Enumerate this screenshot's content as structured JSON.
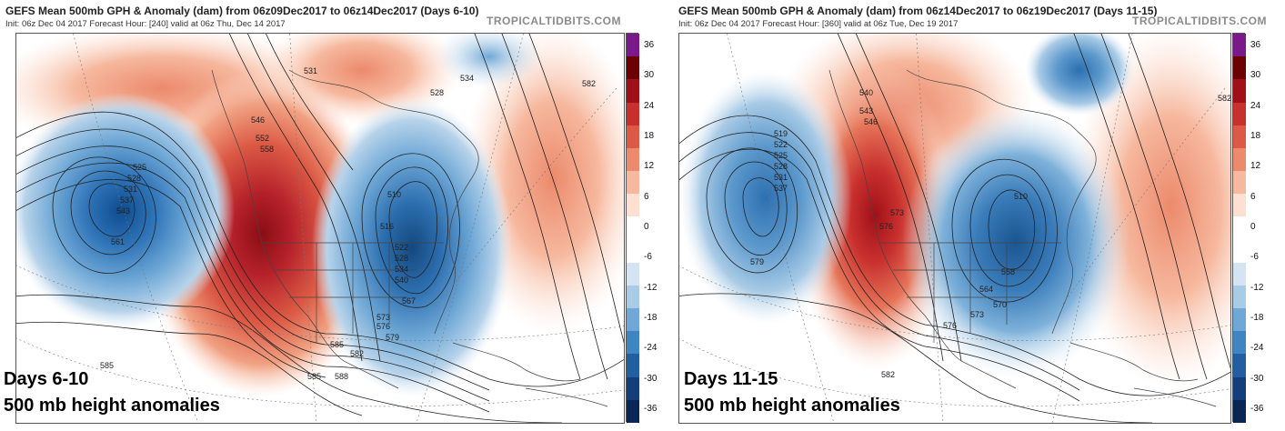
{
  "panels": [
    {
      "title": "GEFS Mean 500mb GPH & Anomaly (dam) from 06z09Dec2017 to 06z14Dec2017 (Days 6-10)",
      "subtitle": "Init: 06z Dec 04 2017   Forecast Hour: [240]   valid at 06z Thu, Dec 14 2017",
      "brand": "TROPICALTIDBITS.COM",
      "overlay_line1": "Days 6-10",
      "overlay_line2": "500 mb height anomalies",
      "contour_labels": [
        "531",
        "534",
        "528",
        "525",
        "528",
        "531",
        "537",
        "543",
        "561",
        "546",
        "552",
        "558",
        "510",
        "516",
        "582",
        "585",
        "588",
        "567",
        "573",
        "576",
        "579",
        "585",
        "582",
        "585",
        "522",
        "528",
        "534",
        "540"
      ]
    },
    {
      "title": "GEFS Mean 500mb GPH & Anomaly (dam) from 06z14Dec2017 to 06z19Dec2017 (Days 11-15)",
      "subtitle": "Init: 06z Dec 04 2017   Forecast Hour: [360]   valid at 06z Tue, Dec 19 2017",
      "brand": "TROPICALTIDBITS.COM",
      "overlay_line1": "Days 11-15",
      "overlay_line2": "500 mb height anomalies",
      "contour_labels": [
        "519",
        "522",
        "525",
        "528",
        "531",
        "537",
        "540",
        "543",
        "546",
        "573",
        "576",
        "579",
        "582",
        "510",
        "564",
        "570",
        "573",
        "576",
        "582",
        "558"
      ]
    }
  ],
  "colorbar": {
    "ticks": [
      "36",
      "30",
      "24",
      "18",
      "12",
      "6",
      "0",
      "-6",
      "-12",
      "-18",
      "-24",
      "-30",
      "-36"
    ],
    "colors": [
      "#7a1a8a",
      "#6b0000",
      "#a01018",
      "#c8302e",
      "#dc5a45",
      "#ec8a6c",
      "#f6b89e",
      "#fde0d2",
      "#ffffff",
      "#ffffff",
      "#d4e4f2",
      "#a9cbe6",
      "#6fa8d6",
      "#3f85c2",
      "#235ea0",
      "#133e7a",
      "#0a2654"
    ],
    "anomaly_units": "dam"
  }
}
